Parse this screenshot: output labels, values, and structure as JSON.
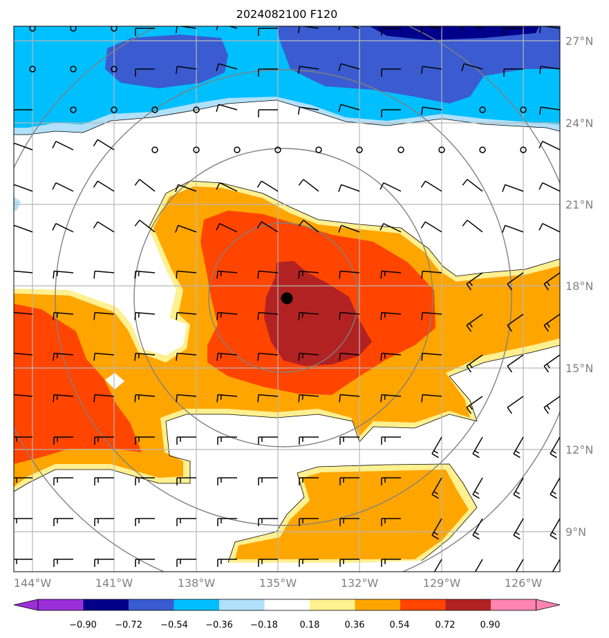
{
  "title": "2024082100 F120",
  "map": {
    "lon_range": [
      -144.7,
      -124.7
    ],
    "lat_range": [
      7.5,
      27.5
    ],
    "center_marker": {
      "lon": -134.7,
      "lat": 17.5
    },
    "range_rings_deg": [
      2.75,
      5.5,
      8.5,
      11.0
    ]
  },
  "lon_labels": [
    "144°W",
    "141°W",
    "138°W",
    "135°W",
    "132°W",
    "129°W",
    "126°W"
  ],
  "lat_labels": [
    "27°N",
    "24°N",
    "21°N",
    "18°N",
    "15°N",
    "12°N",
    "9°N"
  ],
  "colorbar": {
    "ticks": [
      "−0.90",
      "−0.72",
      "−0.54",
      "−0.36",
      "−0.18",
      "0.18",
      "0.36",
      "0.54",
      "0.72",
      "0.90"
    ],
    "colors": [
      "#9b30d9",
      "#00008b",
      "#3a5cd0",
      "#00bfff",
      "#b0e0fa",
      "#ffffff",
      "#fff090",
      "#ffa500",
      "#ff4500",
      "#b22222",
      "#ff85b0"
    ]
  },
  "colors": {
    "grid": "#b8b8b8",
    "rings": "#808080",
    "barb": "#000000"
  }
}
